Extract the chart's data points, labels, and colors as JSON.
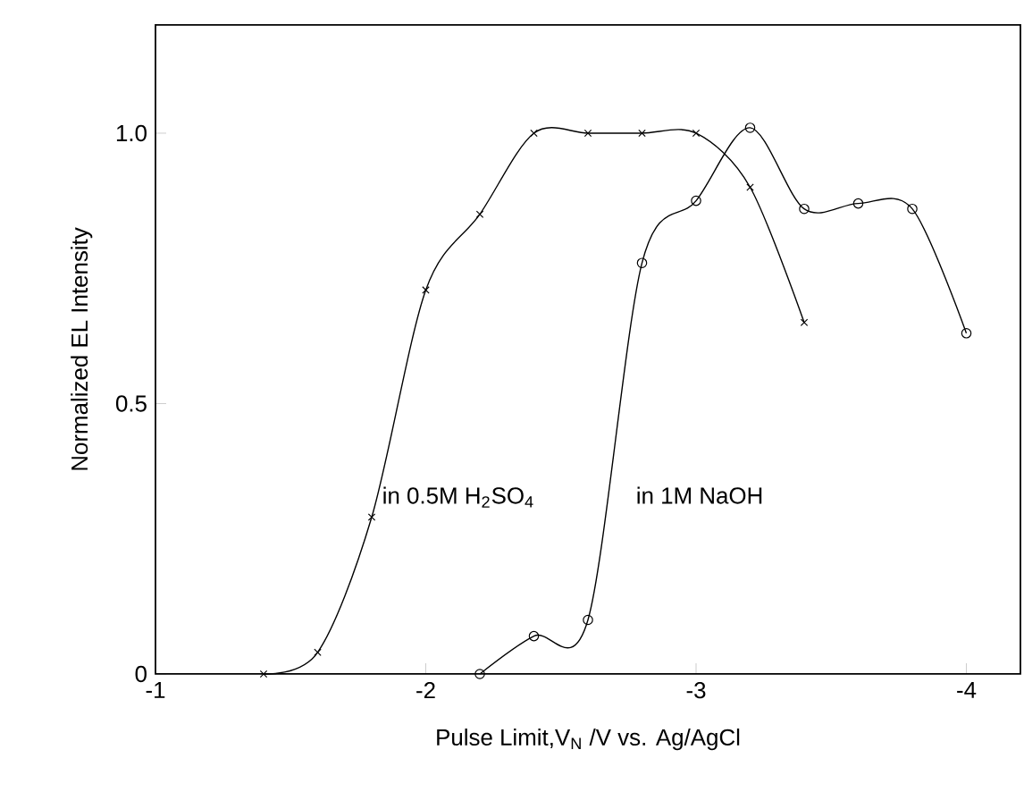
{
  "chart_data": {
    "type": "line",
    "xlabel": "Pulse Limit,V$_{N}$ /V  vs. Ag/AgCl",
    "ylabel": "Normalized EL Intensity",
    "xlim": [
      -1,
      -4.2
    ],
    "ylim": [
      0,
      1.2
    ],
    "xticks": [
      -1,
      -2,
      -3,
      -4
    ],
    "yticks": [
      0,
      0.5,
      {
        "value": 1,
        "label": "1.0"
      }
    ],
    "grid": false,
    "legend": false,
    "line_style": "solid",
    "series": [
      {
        "name": "in 0.5M H$_{2}$SO$_{4}$",
        "color": "#000000",
        "marker": "cross",
        "x": [
          -1.4,
          -1.6,
          -1.8,
          -2.0,
          -2.2,
          -2.4,
          -2.6,
          -2.8,
          -3.0,
          -3.2,
          -3.4
        ],
        "values": [
          0,
          0.04,
          0.29,
          0.71,
          0.85,
          1.0,
          1.0,
          1.0,
          1.0,
          0.9,
          0.65
        ]
      },
      {
        "name": "in 1M NaOH",
        "color": "#000000",
        "marker": "circle",
        "x": [
          -2.2,
          -2.4,
          -2.6,
          -2.8,
          -3.0,
          -3.2,
          -3.4,
          -3.6,
          -3.8,
          -4.0
        ],
        "values": [
          0,
          0.07,
          0.1,
          0.76,
          0.875,
          1.01,
          0.86,
          0.87,
          0.86,
          0.63
        ]
      }
    ]
  }
}
